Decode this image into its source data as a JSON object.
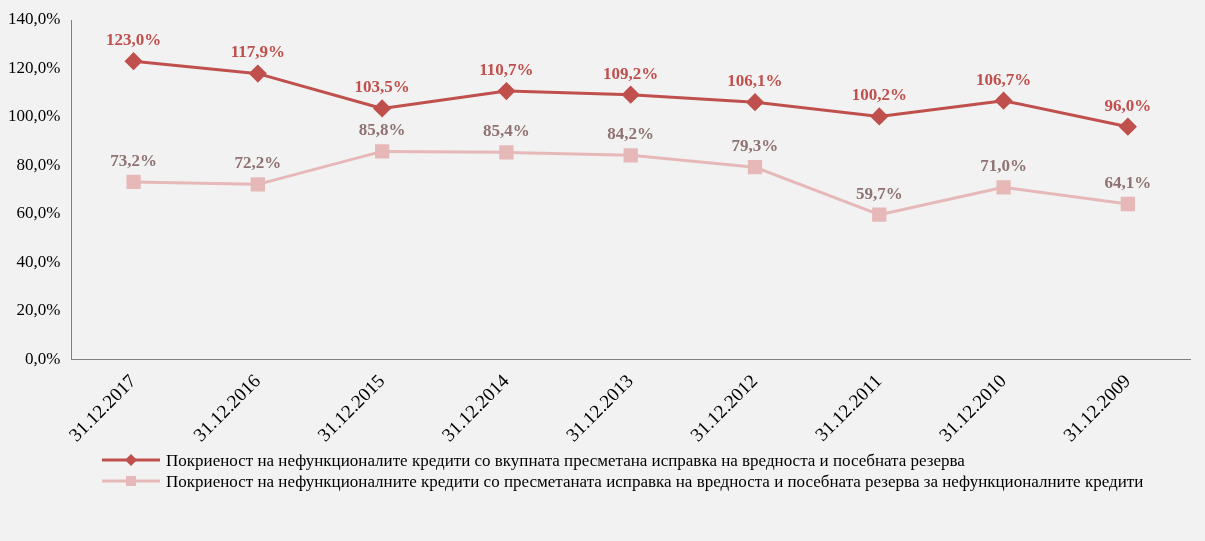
{
  "chart_data": {
    "type": "line",
    "categories": [
      "31.12.2017",
      "31.12.2016",
      "31.12.2015",
      "31.12.2014",
      "31.12.2013",
      "31.12.2012",
      "31.12.2011",
      "31.12.2010",
      "31.12.2009"
    ],
    "ylim": [
      0,
      140
    ],
    "yticks": [
      {
        "value": 0,
        "label": "0,0%"
      },
      {
        "value": 20,
        "label": "20,0%"
      },
      {
        "value": 40,
        "label": "40,0%"
      },
      {
        "value": 60,
        "label": "60,0%"
      },
      {
        "value": 80,
        "label": "80,0%"
      },
      {
        "value": 100,
        "label": "100,0%"
      },
      {
        "value": 120,
        "label": "120,0%"
      },
      {
        "value": 140,
        "label": "140,0%"
      }
    ],
    "grid": false,
    "legend": "bottom",
    "series": [
      {
        "name": "Покриеност на нефункционалите кредити со вкупната пресметана исправка на вредноста и посебната резерва",
        "color": "#c0504d",
        "marker": "diamond",
        "values": [
          123.0,
          117.9,
          103.5,
          110.7,
          109.2,
          106.1,
          100.2,
          106.7,
          96.0
        ],
        "value_labels": [
          "123,0%",
          "117,9%",
          "103,5%",
          "110,7%",
          "109,2%",
          "106,1%",
          "100,2%",
          "106,7%",
          "96,0%"
        ]
      },
      {
        "name": "Покриеност на нефункционалните кредити со пресметаната исправка на вредноста и посебната резерва за нефункционалните кредити",
        "color": "#e6b9b8",
        "marker": "square",
        "values": [
          73.2,
          72.2,
          85.8,
          85.4,
          84.2,
          79.3,
          59.7,
          71.0,
          64.1
        ],
        "value_labels": [
          "73,2%",
          "72,2%",
          "85,8%",
          "85,4%",
          "84,2%",
          "79,3%",
          "59,7%",
          "71,0%",
          "64,1%"
        ]
      }
    ]
  }
}
